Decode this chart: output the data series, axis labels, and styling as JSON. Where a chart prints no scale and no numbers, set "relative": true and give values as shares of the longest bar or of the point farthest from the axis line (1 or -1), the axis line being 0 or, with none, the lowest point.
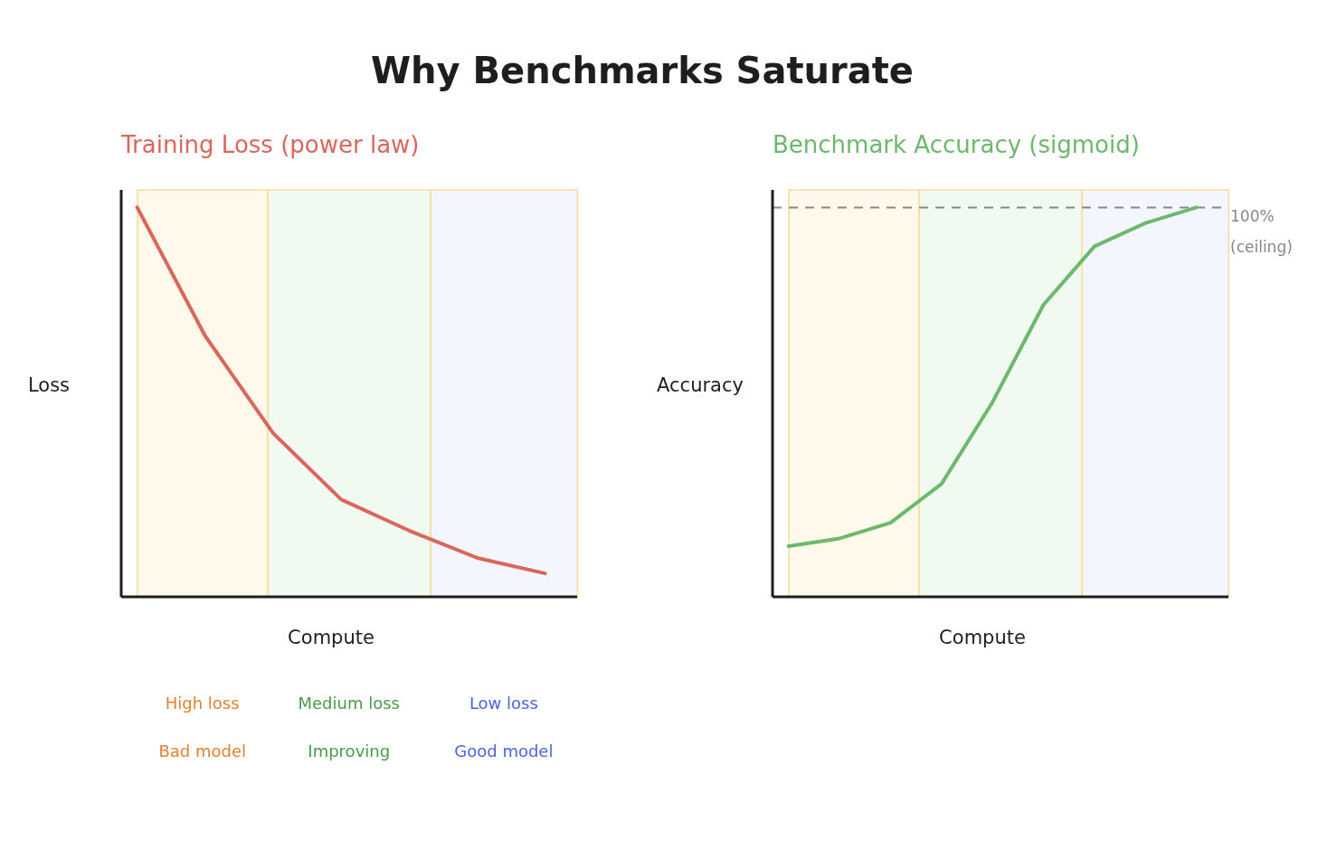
{
  "chart_data": [
    {
      "type": "other",
      "title": "Why Benchmarks Saturate"
    },
    {
      "type": "line",
      "title": "Training Loss (power law)",
      "xlabel": "Compute",
      "ylabel": "Loss",
      "relative": true,
      "categories": [
        null,
        null,
        null,
        null,
        null,
        null,
        null
      ],
      "series": [
        {
          "color": "#d9675c",
          "values": [
            1,
            0.67,
            0.42,
            0.25,
            0.17,
            0.1,
            0.06
          ]
        }
      ],
      "annotations": [
        "High loss",
        "Medium loss",
        "Low loss",
        "Bad model",
        "Improving",
        "Good model"
      ]
    },
    {
      "type": "line",
      "title": "Benchmark Accuracy (sigmoid)",
      "xlabel": "Compute",
      "ylabel": "Accuracy",
      "relative": true,
      "categories": [
        null,
        null,
        null,
        null,
        null,
        null,
        null,
        null,
        null
      ],
      "series": [
        {
          "color": "#6cb86c",
          "values": [
            0.13,
            0.15,
            0.19,
            0.29,
            0.5,
            0.75,
            0.9,
            0.96,
            1
          ]
        }
      ],
      "ref_lines": [
        {
          "axis": "y",
          "value": 1,
          "label": "100% (ceiling)",
          "color": "#888888",
          "line_style": "dashed"
        }
      ]
    }
  ]
}
